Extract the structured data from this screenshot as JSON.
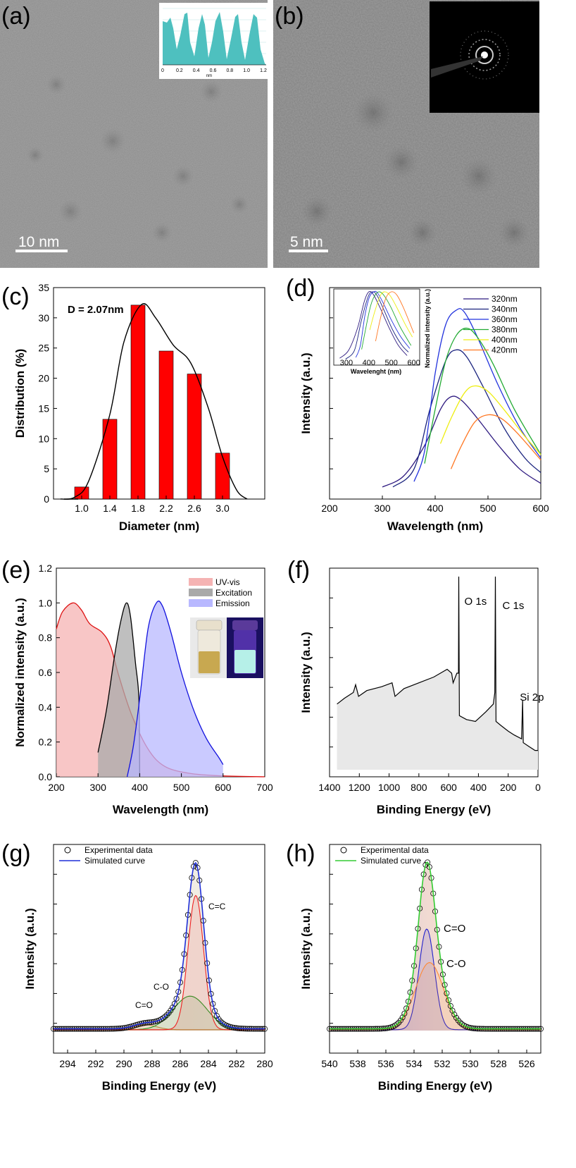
{
  "panels": {
    "a": {
      "letter": "(a)",
      "scale": "10 nm",
      "inset_xlabel": "nm",
      "inset_ticks": [
        "0",
        "0.2",
        "0.4",
        "0.6",
        "0.8",
        "1.0",
        "1.2"
      ]
    },
    "b": {
      "letter": "(b)",
      "scale": "5 nm"
    },
    "c": {
      "letter": "(c)",
      "note": "D = 2.07nm"
    },
    "d": {
      "letter": "(d)",
      "inset_xlabel": "Wavelenght (nm)",
      "inset_ylabel": "Normalized intensity (a.u.)",
      "inset_ticks": [
        "300",
        "400",
        "500",
        "600"
      ]
    },
    "e": {
      "letter": "(e)"
    },
    "f": {
      "letter": "(f)"
    },
    "g": {
      "letter": "(g)"
    },
    "h": {
      "letter": "(h)"
    }
  },
  "colors": {
    "bar": "#ff0000",
    "teal": "#4ec0bf",
    "uv": "#f5b3b3",
    "exc": "#a9a9a9",
    "emi": "#b8b8ff"
  },
  "chart_data": [
    {
      "id": "c",
      "type": "bar",
      "categories": [
        "1.0",
        "1.4",
        "1.8",
        "2.2",
        "2.6",
        "3.0"
      ],
      "values": [
        2.0,
        13.2,
        32.1,
        24.5,
        20.7,
        7.6
      ],
      "xlabel": "Diameter (nm)",
      "ylabel": "Distribution (%)",
      "ylim": [
        0,
        35
      ],
      "yticks": [
        "0",
        "5",
        "10",
        "15",
        "20",
        "25",
        "30",
        "35"
      ],
      "fit": [
        [
          0.7,
          0
        ],
        [
          0.9,
          0.3
        ],
        [
          1.1,
          3
        ],
        [
          1.4,
          14
        ],
        [
          1.6,
          26
        ],
        [
          1.85,
          32.2
        ],
        [
          2.05,
          30
        ],
        [
          2.3,
          25.5
        ],
        [
          2.55,
          22.5
        ],
        [
          2.8,
          15
        ],
        [
          3.0,
          7
        ],
        [
          3.2,
          1.5
        ],
        [
          3.35,
          0
        ]
      ]
    },
    {
      "id": "d",
      "type": "line",
      "xlabel": "Wavelength (nm)",
      "ylabel": "Intensity (a.u.)",
      "xlim": [
        200,
        600
      ],
      "xticks": [
        "200",
        "300",
        "400",
        "500",
        "600"
      ],
      "series": [
        {
          "name": "320nm",
          "color": "#2e1a80",
          "points": [
            [
              300,
              0.02
            ],
            [
              340,
              0.08
            ],
            [
              380,
              0.25
            ],
            [
              410,
              0.45
            ],
            [
              430,
              0.52
            ],
            [
              450,
              0.5
            ],
            [
              480,
              0.4
            ],
            [
              520,
              0.25
            ],
            [
              560,
              0.12
            ],
            [
              600,
              0.04
            ]
          ]
        },
        {
          "name": "340nm",
          "color": "#1a237e",
          "points": [
            [
              320,
              0.02
            ],
            [
              360,
              0.12
            ],
            [
              390,
              0.45
            ],
            [
              420,
              0.72
            ],
            [
              440,
              0.78
            ],
            [
              460,
              0.74
            ],
            [
              490,
              0.58
            ],
            [
              530,
              0.35
            ],
            [
              570,
              0.18
            ],
            [
              600,
              0.1
            ]
          ]
        },
        {
          "name": "360nm",
          "color": "#2233dd",
          "points": [
            [
              360,
              0.05
            ],
            [
              380,
              0.22
            ],
            [
              400,
              0.65
            ],
            [
              420,
              0.92
            ],
            [
              440,
              1.0
            ],
            [
              455,
              0.99
            ],
            [
              480,
              0.85
            ],
            [
              520,
              0.58
            ],
            [
              560,
              0.35
            ],
            [
              600,
              0.18
            ]
          ]
        },
        {
          "name": "380nm",
          "color": "#22aa33",
          "points": [
            [
              380,
              0.15
            ],
            [
              400,
              0.45
            ],
            [
              420,
              0.72
            ],
            [
              440,
              0.86
            ],
            [
              460,
              0.9
            ],
            [
              480,
              0.85
            ],
            [
              510,
              0.7
            ],
            [
              550,
              0.45
            ],
            [
              600,
              0.2
            ]
          ]
        },
        {
          "name": "400nm",
          "color": "#eeee11",
          "points": [
            [
              410,
              0.26
            ],
            [
              430,
              0.4
            ],
            [
              455,
              0.54
            ],
            [
              475,
              0.58
            ],
            [
              500,
              0.55
            ],
            [
              530,
              0.45
            ],
            [
              570,
              0.3
            ],
            [
              600,
              0.2
            ]
          ]
        },
        {
          "name": "420nm",
          "color": "#ff7722",
          "points": [
            [
              430,
              0.12
            ],
            [
              450,
              0.25
            ],
            [
              475,
              0.38
            ],
            [
              500,
              0.42
            ],
            [
              525,
              0.4
            ],
            [
              555,
              0.32
            ],
            [
              600,
              0.17
            ]
          ]
        }
      ]
    },
    {
      "id": "e",
      "type": "area",
      "xlabel": "Wavelength (nm)",
      "ylabel": "Normalized intensity (a.u.)",
      "xlim": [
        200,
        700
      ],
      "ylim": [
        0,
        1.2
      ],
      "xticks": [
        "200",
        "300",
        "400",
        "500",
        "600",
        "700"
      ],
      "yticks": [
        "0.0",
        "0.2",
        "0.4",
        "0.6",
        "0.8",
        "1.0",
        "1.2"
      ],
      "series": [
        {
          "name": "UV-vis",
          "points": [
            [
              200,
              0.85
            ],
            [
              215,
              0.95
            ],
            [
              240,
              1.0
            ],
            [
              260,
              0.96
            ],
            [
              280,
              0.88
            ],
            [
              310,
              0.83
            ],
            [
              330,
              0.75
            ],
            [
              350,
              0.58
            ],
            [
              380,
              0.36
            ],
            [
              420,
              0.16
            ],
            [
              460,
              0.06
            ],
            [
              520,
              0.02
            ],
            [
              600,
              0.005
            ],
            [
              700,
              0.0
            ]
          ]
        },
        {
          "name": "Excitation",
          "points": [
            [
              300,
              0.14
            ],
            [
              320,
              0.38
            ],
            [
              340,
              0.7
            ],
            [
              355,
              0.9
            ],
            [
              368,
              1.0
            ],
            [
              378,
              0.92
            ],
            [
              390,
              0.65
            ],
            [
              398,
              0.45
            ],
            [
              400,
              0.0
            ]
          ]
        },
        {
          "name": "Emission",
          "points": [
            [
              370,
              0.0
            ],
            [
              385,
              0.18
            ],
            [
              400,
              0.45
            ],
            [
              420,
              0.85
            ],
            [
              440,
              1.0
            ],
            [
              455,
              0.98
            ],
            [
              475,
              0.83
            ],
            [
              500,
              0.6
            ],
            [
              530,
              0.38
            ],
            [
              560,
              0.22
            ],
            [
              590,
              0.11
            ],
            [
              600,
              0.07
            ]
          ]
        }
      ]
    },
    {
      "id": "f",
      "type": "line",
      "xlabel": "Binding Energy (eV)",
      "ylabel": "Intensity (a.u.)",
      "xlim": [
        1400,
        0
      ],
      "xticks": [
        "1400",
        "1200",
        "1000",
        "800",
        "600",
        "400",
        "200",
        "0"
      ],
      "annotations": [
        "O 1s",
        "C 1s",
        "Si 2p"
      ],
      "points": [
        [
          1350,
          0.34
        ],
        [
          1300,
          0.37
        ],
        [
          1240,
          0.4
        ],
        [
          1225,
          0.44
        ],
        [
          1205,
          0.38
        ],
        [
          1150,
          0.41
        ],
        [
          1050,
          0.43
        ],
        [
          980,
          0.45
        ],
        [
          960,
          0.38
        ],
        [
          900,
          0.42
        ],
        [
          800,
          0.45
        ],
        [
          700,
          0.48
        ],
        [
          610,
          0.52
        ],
        [
          580,
          0.5
        ],
        [
          570,
          0.45
        ],
        [
          545,
          0.5
        ],
        [
          534,
          0.5
        ],
        [
          532,
          1.0
        ],
        [
          528,
          0.28
        ],
        [
          480,
          0.26
        ],
        [
          420,
          0.25
        ],
        [
          350,
          0.3
        ],
        [
          300,
          0.34
        ],
        [
          290,
          0.4
        ],
        [
          286,
          1.0
        ],
        [
          282,
          0.25
        ],
        [
          250,
          0.23
        ],
        [
          200,
          0.2
        ],
        [
          160,
          0.18
        ],
        [
          110,
          0.16
        ],
        [
          103,
          0.36
        ],
        [
          99,
          0.14
        ],
        [
          60,
          0.12
        ],
        [
          20,
          0.1
        ],
        [
          0,
          0.1
        ]
      ]
    },
    {
      "id": "g",
      "type": "line",
      "xlabel": "Binding Energy (eV)",
      "ylabel": "Intensity (a.u.)",
      "xlim": [
        295,
        280
      ],
      "xticks": [
        "294",
        "292",
        "290",
        "288",
        "286",
        "284",
        "282",
        "280"
      ],
      "legend": [
        "Experimental data",
        "Simulated curve"
      ],
      "annotations": [
        "C=C",
        "C-O",
        "C=O"
      ],
      "peaks": [
        {
          "center": 288.5,
          "height": 0.03,
          "width": 0.8,
          "color": "#cc8844"
        },
        {
          "center": 285.3,
          "height": 0.2,
          "width": 1.2,
          "color": "#229922"
        },
        {
          "center": 284.9,
          "height": 0.8,
          "width": 0.55,
          "color": "#ee2222"
        }
      ]
    },
    {
      "id": "h",
      "type": "line",
      "xlabel": "Binding Energy (eV)",
      "ylabel": "Intensity (a.u.)",
      "xlim": [
        540,
        525
      ],
      "xticks": [
        "540",
        "538",
        "536",
        "534",
        "532",
        "530",
        "528",
        "526"
      ],
      "legend": [
        "Experimental data",
        "Simulated curve"
      ],
      "annotations": [
        "C=O",
        "C-O"
      ],
      "peaks": [
        {
          "center": 533.1,
          "height": 0.6,
          "width": 0.55,
          "color": "#2222cc"
        },
        {
          "center": 532.9,
          "height": 0.4,
          "width": 1.0,
          "color": "#ff8833"
        }
      ]
    }
  ]
}
